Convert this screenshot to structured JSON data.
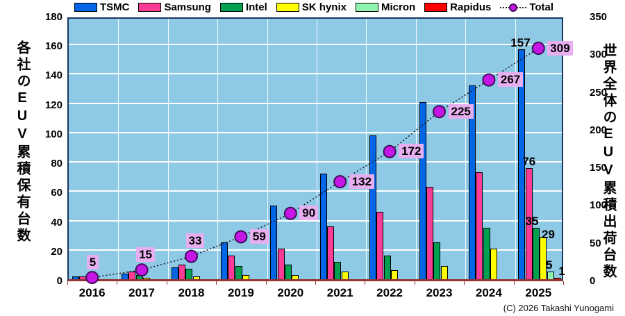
{
  "chart_data": {
    "type": "bar",
    "categories": [
      "2016",
      "2017",
      "2018",
      "2019",
      "2020",
      "2021",
      "2022",
      "2023",
      "2024",
      "2025"
    ],
    "series": [
      {
        "name": "TSMC",
        "color": "#0066E6",
        "values": [
          2,
          4,
          8,
          25,
          50,
          72,
          98,
          121,
          132,
          157
        ]
      },
      {
        "name": "Samsung",
        "color": "#FA3C96",
        "values": [
          2,
          5,
          10,
          16,
          21,
          36,
          46,
          63,
          73,
          76
        ]
      },
      {
        "name": "Intel",
        "color": "#00A050",
        "values": [
          1,
          3,
          7,
          9,
          10,
          12,
          16,
          25,
          35,
          35
        ]
      },
      {
        "name": "SK hynix",
        "color": "#FFFF00",
        "values": [
          0,
          1,
          2,
          3,
          3,
          5,
          6,
          9,
          21,
          29
        ]
      },
      {
        "name": "Micron",
        "color": "#8FF4AE",
        "values": [
          0,
          0,
          0,
          0,
          0,
          0,
          0,
          0,
          0,
          5
        ]
      },
      {
        "name": "Rapidus",
        "color": "#FF0000",
        "values": [
          0,
          0,
          0,
          0,
          0,
          0,
          0,
          0,
          0,
          1
        ]
      }
    ],
    "total_series": {
      "name": "Total",
      "marker_color": "#C516E6",
      "marker_edge": "#3E0E57",
      "line_style": "dotted-black",
      "values": [
        5,
        15,
        33,
        59,
        90,
        132,
        172,
        225,
        267,
        309
      ]
    },
    "left_axis": {
      "min": 0,
      "max": 180,
      "step": 20,
      "title": "各社のEUV累積保有台数"
    },
    "right_axis": {
      "min": 0,
      "max": 350,
      "step": 50,
      "title": "世界全体のEUV累積出荷台数"
    },
    "grid": {
      "horizontal": true,
      "vertical_category_lines": true,
      "color": "#FFFFFF"
    },
    "plot_background": "#8EC9E6",
    "total_label_bg": "#E8AFF0",
    "bar_value_labels": [
      {
        "series": "TSMC",
        "category": "2025",
        "text": "157"
      },
      {
        "series": "Samsung",
        "category": "2025",
        "text": "76"
      },
      {
        "series": "Intel",
        "category": "2025",
        "text": "35"
      },
      {
        "series": "SK hynix",
        "category": "2025",
        "text": "29"
      },
      {
        "series": "Micron",
        "category": "2025",
        "text": "5"
      },
      {
        "series": "Rapidus",
        "category": "2025",
        "text": "1"
      }
    ]
  },
  "footer": {
    "copyright": "(C) 2026 Takashi Yunogami"
  }
}
